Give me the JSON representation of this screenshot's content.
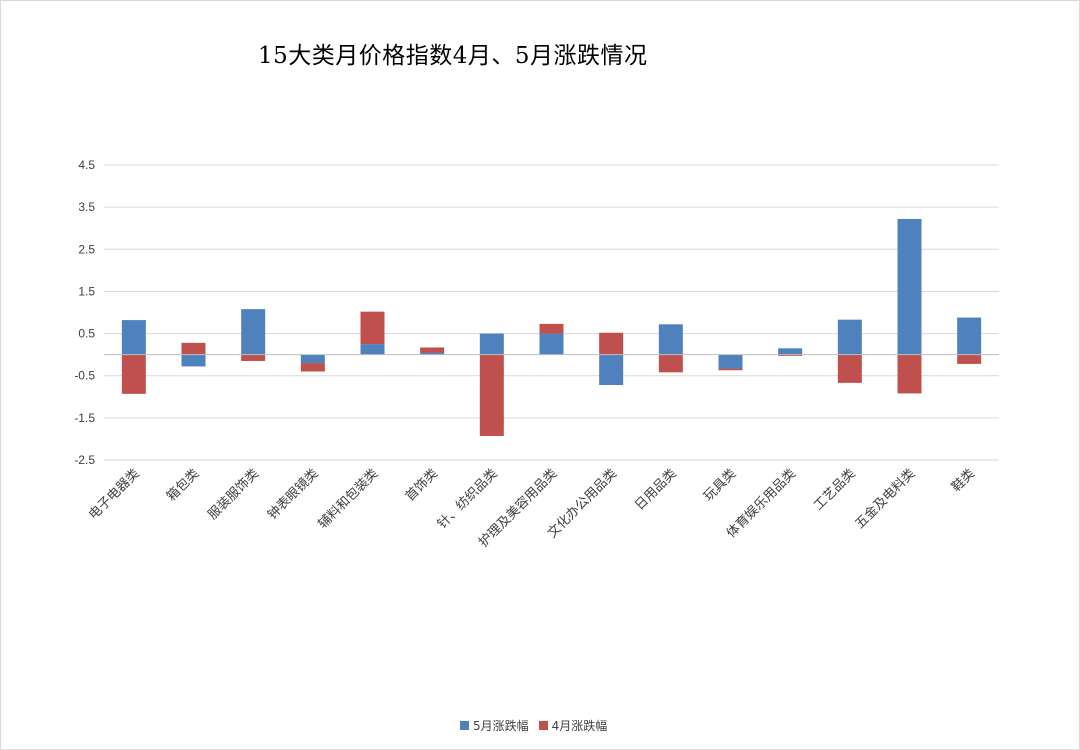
{
  "chart_data": {
    "type": "bar",
    "stacked": true,
    "title": "15大类月价格指数4月、5月涨跌情况",
    "categories": [
      "电子电器类",
      "箱包类",
      "服装服饰类",
      "钟表眼镜类",
      "辅料和包装类",
      "首饰类",
      "针、纺织品类",
      "护理及美容用品类",
      "文化办公用品类",
      "日用品类",
      "玩具类",
      "体育娱乐用品类",
      "工艺品类",
      "五金及电料类",
      "鞋类"
    ],
    "series": [
      {
        "name": "5月涨跌幅",
        "color": "#4f81bd",
        "values": [
          0.82,
          -0.28,
          1.08,
          -0.2,
          0.25,
          0.05,
          0.5,
          0.5,
          -0.72,
          0.72,
          -0.33,
          0.15,
          0.83,
          3.22,
          0.88
        ]
      },
      {
        "name": "4月涨跌幅",
        "color": "#c0504d",
        "values": [
          -0.93,
          0.28,
          -0.15,
          -0.2,
          0.77,
          0.12,
          -1.93,
          0.23,
          0.52,
          -0.42,
          -0.04,
          -0.03,
          -0.67,
          -0.92,
          -0.22
        ]
      }
    ],
    "yticks": [
      4.5,
      3.5,
      2.5,
      1.5,
      0.5,
      -0.5,
      -1.5,
      -2.5
    ],
    "ytick_labels": [
      "4.5",
      "3.5",
      "2.5",
      "1.5",
      "0.5",
      "-0.5",
      "-1.5",
      "-2.5"
    ],
    "ylim": [
      -2.5,
      4.5
    ],
    "grid": true,
    "legend_position": "bottom"
  }
}
